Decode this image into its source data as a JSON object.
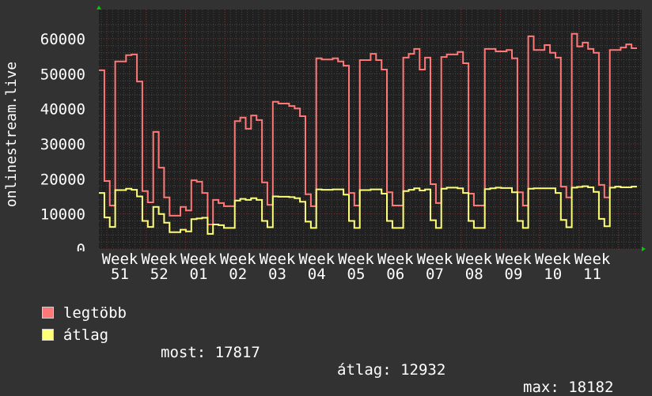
{
  "chart_data": {
    "type": "line",
    "step": true,
    "title": "",
    "ylabel": "onlinestream.live",
    "ylim": [
      0,
      65000
    ],
    "y_ticks": [
      "0",
      "10000",
      "20000",
      "30000",
      "40000",
      "50000",
      "60000"
    ],
    "x_tick_labels": [
      "Week 51",
      "Week 52",
      "Week 01",
      "Week 02",
      "Week 03",
      "Week 04",
      "Week 05",
      "Week 06",
      "Week 07",
      "Week 08",
      "Week 09",
      "Week 10",
      "Week 11"
    ],
    "grid": true,
    "legend_position": "bottom-left",
    "series": [
      {
        "name": "legtöbb",
        "color": "#ff7878",
        "values": [
          51000,
          19400,
          12400,
          53500,
          53500,
          55300,
          55500,
          47800,
          16500,
          13300,
          33400,
          23200,
          14700,
          9500,
          9500,
          12000,
          11000,
          19600,
          19200,
          16000,
          7000,
          14000,
          13100,
          12200,
          12200,
          36500,
          37500,
          34300,
          38100,
          36800,
          19000,
          12600,
          42000,
          41500,
          41500,
          40800,
          40100,
          37900,
          15600,
          12200,
          54400,
          54100,
          54100,
          54400,
          53500,
          52300,
          16000,
          12400,
          53900,
          53900,
          55700,
          53900,
          51200,
          16200,
          12400,
          12400,
          54600,
          55700,
          57100,
          51200,
          54600,
          18500,
          13100,
          54800,
          55500,
          55500,
          56200,
          53000,
          15800,
          12400,
          12400,
          57100,
          57100,
          56400,
          56400,
          56800,
          54400,
          16200,
          12400,
          60700,
          56800,
          56800,
          58200,
          56000,
          54600,
          17800,
          14700,
          61400,
          57800,
          58900,
          57100,
          56000,
          18300,
          14700,
          56800,
          56800,
          57500,
          58400,
          57300
        ]
      },
      {
        "name": "átlag",
        "color": "#ffff78",
        "values": [
          16000,
          9000,
          6300,
          16800,
          16800,
          17200,
          16900,
          15000,
          8000,
          6300,
          12000,
          10000,
          7500,
          4800,
          4800,
          5500,
          5000,
          8500,
          8700,
          8900,
          4300,
          7000,
          6800,
          6000,
          6000,
          13800,
          14300,
          14000,
          14500,
          14000,
          8000,
          6200,
          15000,
          14900,
          14900,
          14800,
          14500,
          13500,
          7800,
          6000,
          17000,
          16900,
          16900,
          17000,
          17000,
          15500,
          8000,
          6000,
          16800,
          16800,
          17000,
          17000,
          15800,
          8000,
          6000,
          6000,
          16500,
          16900,
          17300,
          16700,
          17000,
          8200,
          6000,
          17200,
          17500,
          17500,
          17300,
          16000,
          8000,
          6000,
          6000,
          17100,
          17300,
          17500,
          17400,
          17400,
          16200,
          8000,
          6000,
          17200,
          17300,
          17300,
          17300,
          17300,
          16000,
          8300,
          6200,
          17500,
          17700,
          17900,
          17600,
          16300,
          8600,
          6500,
          17500,
          17800,
          17600,
          17600,
          17800
        ]
      }
    ]
  },
  "legend": {
    "items": [
      {
        "label": "legtöbb",
        "color": "#ff7878"
      },
      {
        "label": "átlag",
        "color": "#ffff78"
      }
    ],
    "stats": {
      "most": "most: 17817",
      "atlag": "átlag: 12932",
      "max": "max: 18182"
    }
  }
}
